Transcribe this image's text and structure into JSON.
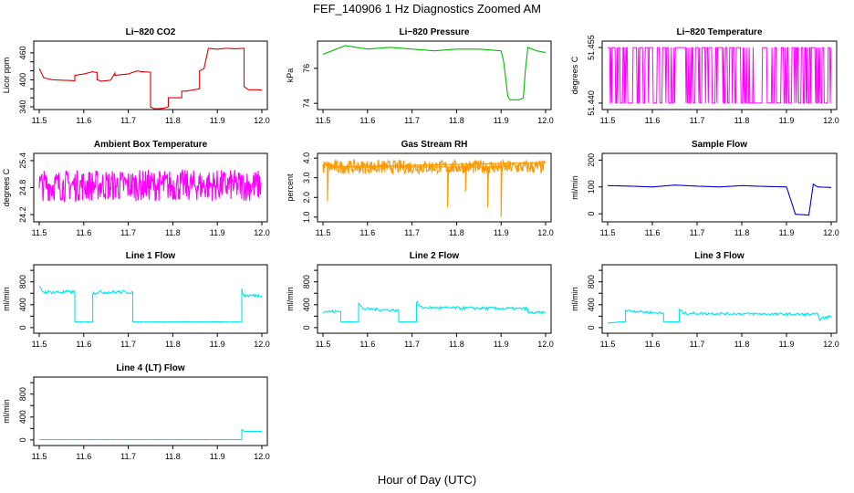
{
  "page": {
    "title": "FEF_140906  1 Hz Diagnostics Zoomed AM",
    "x_axis_title": "Hour of Day (UTC)"
  },
  "chart_data": [
    {
      "id": "co2",
      "type": "line",
      "title": "Li−820 CO2",
      "ylabel": "Licor ppm",
      "color": "#dd0000",
      "grid": false,
      "x": [
        11.5,
        11.51,
        11.52,
        11.53,
        11.58,
        11.58,
        11.6,
        11.62,
        11.63,
        11.63,
        11.64,
        11.66,
        11.67,
        11.67,
        11.7,
        11.72,
        11.73,
        11.75,
        11.75,
        11.76,
        11.78,
        11.79,
        11.79,
        11.82,
        11.82,
        11.83,
        11.86,
        11.86,
        11.87,
        11.88,
        11.88,
        11.9,
        11.92,
        11.94,
        11.96,
        11.96,
        11.97,
        11.98,
        11.99,
        12.0
      ],
      "values": [
        425,
        405,
        402,
        400,
        398,
        410,
        413,
        418,
        416,
        400,
        397,
        399,
        415,
        410,
        413,
        420,
        418,
        417,
        340,
        335,
        337,
        340,
        360,
        360,
        375,
        375,
        380,
        420,
        425,
        470,
        470,
        468,
        470,
        469,
        470,
        385,
        378,
        378,
        378,
        377
      ],
      "xlim": [
        11.5,
        12.0
      ],
      "xticks": [
        11.5,
        11.6,
        11.7,
        11.8,
        11.9,
        12.0
      ],
      "ylim": [
        340,
        480
      ],
      "yticks": [
        340,
        360,
        380,
        400,
        420,
        440,
        460
      ],
      "yticklabels": [
        "340",
        "",
        "",
        "400",
        "",
        "",
        "460"
      ]
    },
    {
      "id": "pressure",
      "type": "line",
      "title": "Li−820 Pressure",
      "ylabel": "kPa",
      "color": "#00bb00",
      "grid": false,
      "x": [
        11.5,
        11.52,
        11.55,
        11.6,
        11.65,
        11.7,
        11.75,
        11.8,
        11.85,
        11.9,
        11.905,
        11.91,
        11.915,
        11.92,
        11.93,
        11.94,
        11.95,
        11.955,
        11.96,
        11.98,
        12.0
      ],
      "values": [
        76.8,
        77.0,
        77.3,
        77.1,
        77.2,
        77.1,
        77.0,
        77.1,
        77.1,
        77.0,
        76.5,
        75.5,
        74.4,
        74.2,
        74.2,
        74.2,
        74.3,
        76.0,
        77.2,
        77.0,
        76.9
      ],
      "xlim": [
        11.5,
        12.0
      ],
      "xticks": [
        11.5,
        11.6,
        11.7,
        11.8,
        11.9,
        12.0
      ],
      "ylim": [
        73.8,
        77.4
      ],
      "yticks": [
        74,
        76
      ],
      "yticklabels": [
        "74",
        "76"
      ]
    },
    {
      "id": "temp",
      "type": "line",
      "title": "Li−820 Temperature",
      "ylabel": "degrees C",
      "color": "#ff00ff",
      "grid": false,
      "xlim": [
        11.5,
        12.0
      ],
      "xticks": [
        11.5,
        11.6,
        11.7,
        11.8,
        11.9,
        12.0
      ],
      "ylim": [
        51.439,
        51.456
      ],
      "yticks": [
        51.44,
        51.455
      ],
      "yticklabels": [
        "51.440",
        "51.455"
      ],
      "series_kind": "binary",
      "levels": [
        51.44,
        51.455
      ]
    },
    {
      "id": "ambient",
      "type": "line",
      "title": "Ambient Box Temperature",
      "ylabel": "degrees C",
      "color": "#ff00ff",
      "grid": false,
      "xlim": [
        11.5,
        12.0
      ],
      "xticks": [
        11.5,
        11.6,
        11.7,
        11.8,
        11.9,
        12.0
      ],
      "ylim": [
        24.1,
        25.5
      ],
      "yticks": [
        24.2,
        24.8,
        25.4
      ],
      "yticklabels": [
        "24.2",
        "24.8",
        "25.4"
      ],
      "series_kind": "noise",
      "mean": 24.85,
      "spread": 0.35
    },
    {
      "id": "rh",
      "type": "scatter",
      "title": "Gas Stream RH",
      "ylabel": "percent",
      "color": "#ff9900",
      "grid": false,
      "xlim": [
        11.5,
        12.0
      ],
      "xticks": [
        11.5,
        11.6,
        11.7,
        11.8,
        11.9,
        12.0
      ],
      "ylim": [
        0.9,
        4.1
      ],
      "yticks": [
        1.0,
        2.0,
        3.0,
        4.0
      ],
      "yticklabels": [
        "1.0",
        "2.0",
        "3.0",
        "4.0"
      ],
      "series_kind": "noise",
      "mean": 3.55,
      "spread": 0.35,
      "dips_x": [
        11.51,
        11.78,
        11.82,
        11.87,
        11.9
      ],
      "dips_y": [
        1.8,
        1.5,
        2.3,
        1.5,
        1.0
      ]
    },
    {
      "id": "sample",
      "type": "line",
      "title": "Sample Flow",
      "ylabel": "ml/min",
      "color": "#0000cc",
      "grid": false,
      "x": [
        11.5,
        11.55,
        11.6,
        11.65,
        11.7,
        11.75,
        11.8,
        11.85,
        11.9,
        11.91,
        11.92,
        11.95,
        11.96,
        11.97,
        12.0
      ],
      "values": [
        105,
        103,
        100,
        107,
        103,
        100,
        105,
        102,
        100,
        50,
        -2,
        -5,
        110,
        100,
        98
      ],
      "xlim": [
        11.5,
        12.0
      ],
      "xticks": [
        11.5,
        11.6,
        11.7,
        11.8,
        11.9,
        12.0
      ],
      "ylim": [
        -20,
        215
      ],
      "yticks": [
        0,
        100,
        200
      ],
      "yticklabels": [
        "0",
        "100",
        "200"
      ]
    },
    {
      "id": "line1",
      "type": "line",
      "title": "Line 1 Flow",
      "ylabel": "ml/min",
      "color": "#00e5ee",
      "grid": false,
      "x": [
        11.5,
        11.51,
        11.58,
        11.58,
        11.62,
        11.62,
        11.63,
        11.71,
        11.71,
        11.955,
        11.955,
        11.96,
        12.0
      ],
      "values": [
        700,
        620,
        620,
        100,
        100,
        600,
        620,
        620,
        100,
        100,
        650,
        560,
        560
      ],
      "xlim": [
        11.5,
        12.0
      ],
      "xticks": [
        11.5,
        11.6,
        11.7,
        11.8,
        11.9,
        12.0
      ],
      "ylim": [
        -50,
        1050
      ],
      "yticks": [
        0,
        200,
        400,
        600,
        800,
        1000
      ],
      "yticklabels": [
        "0",
        "",
        "400",
        "",
        "800",
        ""
      ],
      "noise": 60
    },
    {
      "id": "line2",
      "type": "line",
      "title": "Line 2 Flow",
      "ylabel": "ml/min",
      "color": "#00e5ee",
      "grid": false,
      "x": [
        11.5,
        11.54,
        11.54,
        11.58,
        11.58,
        11.59,
        11.67,
        11.67,
        11.71,
        11.71,
        11.72,
        11.96,
        11.96,
        12.0
      ],
      "values": [
        280,
        280,
        100,
        100,
        420,
        330,
        300,
        100,
        100,
        450,
        350,
        330,
        260,
        260
      ],
      "xlim": [
        11.5,
        12.0
      ],
      "xticks": [
        11.5,
        11.6,
        11.7,
        11.8,
        11.9,
        12.0
      ],
      "ylim": [
        -50,
        1050
      ],
      "yticks": [
        0,
        200,
        400,
        600,
        800,
        1000
      ],
      "yticklabels": [
        "0",
        "",
        "400",
        "",
        "800",
        ""
      ],
      "noise": 50
    },
    {
      "id": "line3",
      "type": "line",
      "title": "Line 3 Flow",
      "ylabel": "ml/min",
      "color": "#00e5ee",
      "grid": false,
      "x": [
        11.5,
        11.53,
        11.54,
        11.54,
        11.62,
        11.625,
        11.625,
        11.66,
        11.66,
        11.67,
        11.97,
        11.975,
        12.0
      ],
      "values": [
        80,
        100,
        100,
        300,
        250,
        250,
        100,
        100,
        320,
        250,
        230,
        150,
        200
      ],
      "xlim": [
        11.5,
        12.0
      ],
      "xticks": [
        11.5,
        11.6,
        11.7,
        11.8,
        11.9,
        12.0
      ],
      "ylim": [
        -50,
        1050
      ],
      "yticks": [
        0,
        200,
        400,
        600,
        800,
        1000
      ],
      "yticklabels": [
        "0",
        "",
        "400",
        "",
        "800",
        ""
      ],
      "noise": 45
    },
    {
      "id": "line4",
      "type": "line",
      "title": "Line 4 (LT) Flow",
      "ylabel": "ml/min",
      "color": "#00e5ee",
      "grid": false,
      "x": [
        11.5,
        11.955,
        11.955,
        11.96,
        12.0
      ],
      "values": [
        5,
        5,
        180,
        150,
        150
      ],
      "xlim": [
        11.5,
        12.0
      ],
      "xticks": [
        11.5,
        11.6,
        11.7,
        11.8,
        11.9,
        12.0
      ],
      "ylim": [
        -50,
        1050
      ],
      "yticks": [
        0,
        200,
        400,
        600,
        800,
        1000
      ],
      "yticklabels": [
        "0",
        "",
        "400",
        "",
        "800",
        ""
      ],
      "noise": 3
    }
  ]
}
